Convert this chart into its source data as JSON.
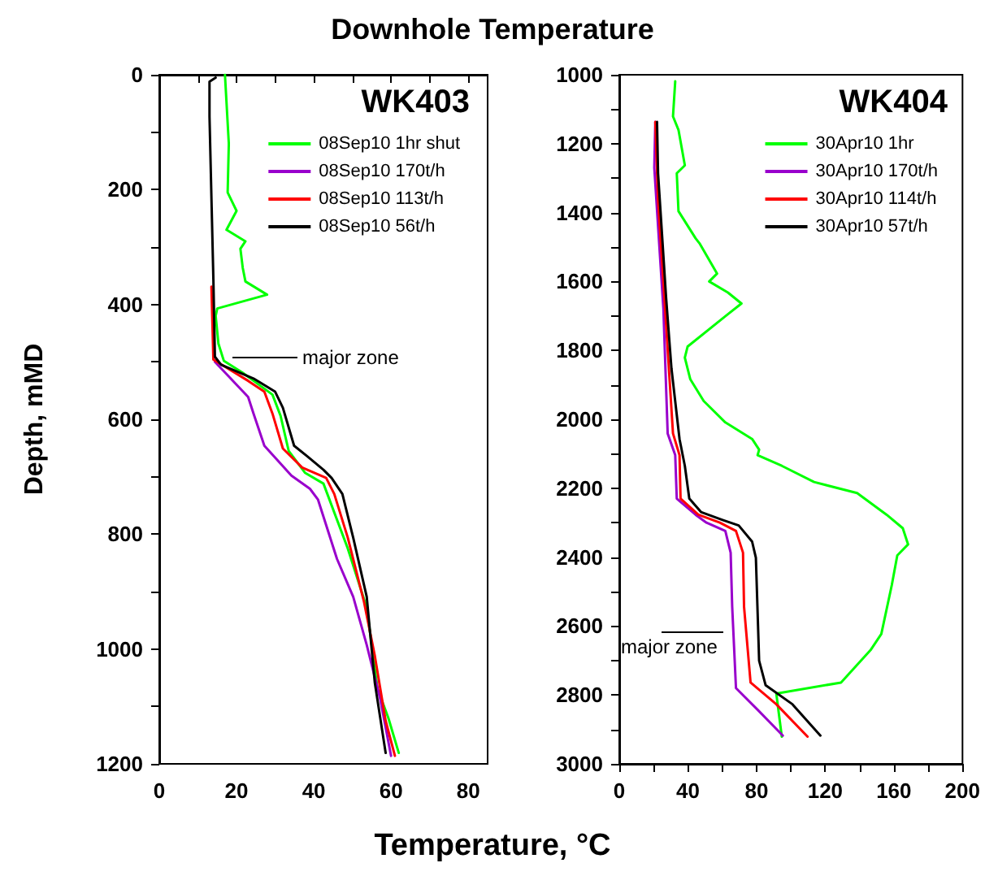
{
  "chart_data": [
    {
      "type": "line",
      "title": "WK403",
      "xlabel": "Temperature, °C",
      "ylabel": "Depth, mMD",
      "annotations": [
        "Downhole Temperature",
        "major zone"
      ],
      "legend": "top right",
      "grid": false,
      "marker": "none",
      "line_style": "solid",
      "xlim": [
        0,
        85
      ],
      "xticks": [
        0,
        {
          "value": 10,
          "label": null
        },
        20,
        {
          "value": 30,
          "label": null
        },
        40,
        {
          "value": 50,
          "label": null
        },
        60,
        {
          "value": 70,
          "label": null
        },
        80
      ],
      "ylim": [
        1200,
        0
      ],
      "yticks": [
        0,
        {
          "value": 100,
          "label": null
        },
        200,
        {
          "value": 300,
          "label": null
        },
        400,
        {
          "value": 500,
          "label": null
        },
        600,
        {
          "value": 700,
          "label": null
        },
        800,
        {
          "value": 900,
          "label": null
        },
        1000,
        {
          "value": 1100,
          "label": null
        },
        1200
      ],
      "series": [
        {
          "name": "08Sep10 1hr shut",
          "color": "#00ff00",
          "x": [
            17,
            18,
            17.7,
            20,
            17.4,
            22.3,
            21,
            21.6,
            22.3,
            27.9,
            15,
            14.6,
            15.3,
            16.7,
            21.6,
            29.3,
            31.4,
            33.5,
            37.7,
            42.5,
            48.8,
            53.7,
            56.5,
            59.3,
            62
          ],
          "values": [
            0,
            120,
            205,
            237,
            270,
            290,
            303,
            336,
            360,
            383,
            407,
            420,
            468,
            498,
            519,
            557,
            594,
            655,
            693,
            712,
            825,
            928,
            1069,
            1120,
            1181
          ]
        },
        {
          "name": "08Sep10 170t/h",
          "color": "#9900cc",
          "x": [
            14.4,
            23,
            24.4,
            27.2,
            34.2,
            39,
            41.1,
            46,
            50.2,
            53.7,
            57.2,
            60
          ],
          "values": [
            500,
            561,
            590,
            646,
            698,
            721,
            740,
            843,
            909,
            993,
            1087,
            1186
          ]
        },
        {
          "name": "08Sep10 113t/h",
          "color": "#ff0000",
          "x": [
            13.5,
            14,
            23,
            27.2,
            29.3,
            32,
            37,
            43.2,
            45.3,
            48.8,
            53,
            55.8,
            58.6,
            61
          ],
          "values": [
            369,
            496,
            533,
            552,
            590,
            651,
            684,
            702,
            730,
            806,
            918,
            1012,
            1125,
            1186
          ]
        },
        {
          "name": "08Sep10 56t/h",
          "color": "#000000",
          "x": [
            14.6,
            13,
            13,
            14,
            14.4,
            16,
            24.4,
            30,
            32,
            34.9,
            38.4,
            42.5,
            44.6,
            47.4,
            50.2,
            53.7,
            55.8,
            58.6
          ],
          "values": [
            5,
            12,
            73,
            355,
            491,
            505,
            529,
            552,
            580,
            646,
            665,
            688,
            702,
            730,
            806,
            909,
            1059,
            1181
          ]
        }
      ]
    },
    {
      "type": "line",
      "title": "WK404",
      "annotations": [
        "major zone"
      ],
      "legend": "top right",
      "grid": false,
      "marker": "none",
      "line_style": "solid",
      "xlim": [
        0,
        200
      ],
      "xticks": [
        0,
        {
          "value": 20,
          "label": null
        },
        40,
        {
          "value": 60,
          "label": null
        },
        80,
        {
          "value": 100,
          "label": null
        },
        120,
        {
          "value": 140,
          "label": null
        },
        160,
        {
          "value": 180,
          "label": null
        },
        200
      ],
      "ylim": [
        3000,
        1000
      ],
      "yticks": [
        1000,
        {
          "value": 1100,
          "label": null
        },
        1200,
        {
          "value": 1300,
          "label": null
        },
        1400,
        {
          "value": 1500,
          "label": null
        },
        1600,
        {
          "value": 1700,
          "label": null
        },
        1800,
        {
          "value": 1900,
          "label": null
        },
        2000,
        {
          "value": 2100,
          "label": null
        },
        2200,
        {
          "value": 2300,
          "label": null
        },
        2400,
        {
          "value": 2500,
          "label": null
        },
        2600,
        {
          "value": 2700,
          "label": null
        },
        2800,
        {
          "value": 2900,
          "label": null
        },
        3000
      ],
      "series": [
        {
          "name": "30Apr10 1hr",
          "color": "#00ff00",
          "x": [
            32.6,
            31.3,
            34.5,
            38.2,
            33.5,
            34.5,
            44.5,
            47,
            57,
            52.4,
            63.3,
            71.2,
            63.3,
            39.8,
            38.2,
            41.4,
            49.2,
            61.8,
            77.4,
            81.5,
            80.6,
            94.7,
            113.5,
            138.6,
            155.8,
            165.2,
            168.3,
            162,
            158.8,
            152.7,
            146.4,
            129.2,
            91.5,
            94.7
          ],
          "values": [
            1019,
            1121,
            1160,
            1263,
            1286,
            1396,
            1475,
            1491,
            1577,
            1600,
            1632,
            1664,
            1695,
            1789,
            1821,
            1884,
            1947,
            2009,
            2057,
            2088,
            2104,
            2135,
            2182,
            2214,
            2277,
            2316,
            2363,
            2395,
            2481,
            2623,
            2670,
            2764,
            2796,
            2921
          ]
        },
        {
          "name": "30Apr10 170t/h",
          "color": "#9900cc",
          "x": [
            21,
            20.4,
            25.7,
            28.2,
            32.6,
            33.5,
            44.5,
            50.8,
            61.8,
            64.9,
            65.8,
            68,
            80.6,
            95.3
          ],
          "values": [
            1137,
            1270,
            1679,
            2041,
            2104,
            2230,
            2277,
            2300,
            2324,
            2387,
            2544,
            2780,
            2843,
            2918
          ]
        },
        {
          "name": "30Apr10 114t/h",
          "color": "#ff0000",
          "x": [
            21,
            22.6,
            25.7,
            31.3,
            35.1,
            35.7,
            46.1,
            58.6,
            68,
            72.1,
            72.7,
            76.5,
            91.5,
            109.7
          ],
          "values": [
            1137,
            1365,
            1600,
            2041,
            2104,
            2230,
            2277,
            2300,
            2324,
            2387,
            2544,
            2764,
            2827,
            2921
          ]
        },
        {
          "name": "30Apr10 57t/h",
          "color": "#000000",
          "x": [
            22,
            22.6,
            27.3,
            30.4,
            35.1,
            38.2,
            40.8,
            47.6,
            60.2,
            69.6,
            77.4,
            79.6,
            81.5,
            85.3,
            100.9,
            117.2
          ],
          "values": [
            1137,
            1286,
            1648,
            1852,
            2057,
            2135,
            2230,
            2269,
            2292,
            2308,
            2355,
            2402,
            2701,
            2772,
            2827,
            2918
          ]
        }
      ]
    }
  ]
}
